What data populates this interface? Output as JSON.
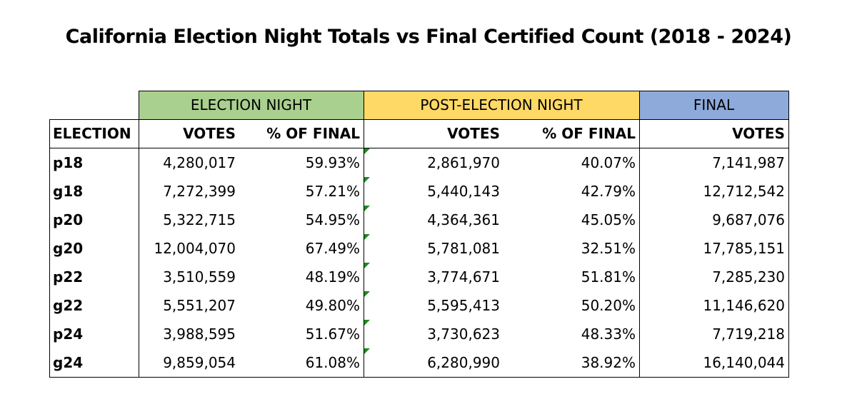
{
  "title": "California Election Night Totals vs Final Certified Count (2018 - 2024)",
  "table": {
    "groups": [
      "ELECTION NIGHT",
      "POST-ELECTION NIGHT",
      "FINAL"
    ],
    "columns": [
      "ELECTION",
      "VOTES",
      "% OF FINAL",
      "VOTES",
      "% OF FINAL",
      "VOTES"
    ],
    "rows": [
      [
        "p18",
        "4,280,017",
        "59.93%",
        "2,861,970",
        "40.07%",
        "7,141,987"
      ],
      [
        "g18",
        "7,272,399",
        "57.21%",
        "5,440,143",
        "42.79%",
        "12,712,542"
      ],
      [
        "p20",
        "5,322,715",
        "54.95%",
        "4,364,361",
        "45.05%",
        "9,687,076"
      ],
      [
        "g20",
        "12,004,070",
        "67.49%",
        "5,781,081",
        "32.51%",
        "17,785,151"
      ],
      [
        "p22",
        "3,510,559",
        "48.19%",
        "3,774,671",
        "51.81%",
        "7,285,230"
      ],
      [
        "g22",
        "5,551,207",
        "49.80%",
        "5,595,413",
        "50.20%",
        "11,146,620"
      ],
      [
        "p24",
        "3,988,595",
        "51.67%",
        "3,730,623",
        "48.33%",
        "7,719,218"
      ],
      [
        "g24",
        "9,859,054",
        "61.08%",
        "6,280,990",
        "38.92%",
        "16,140,044"
      ]
    ]
  }
}
